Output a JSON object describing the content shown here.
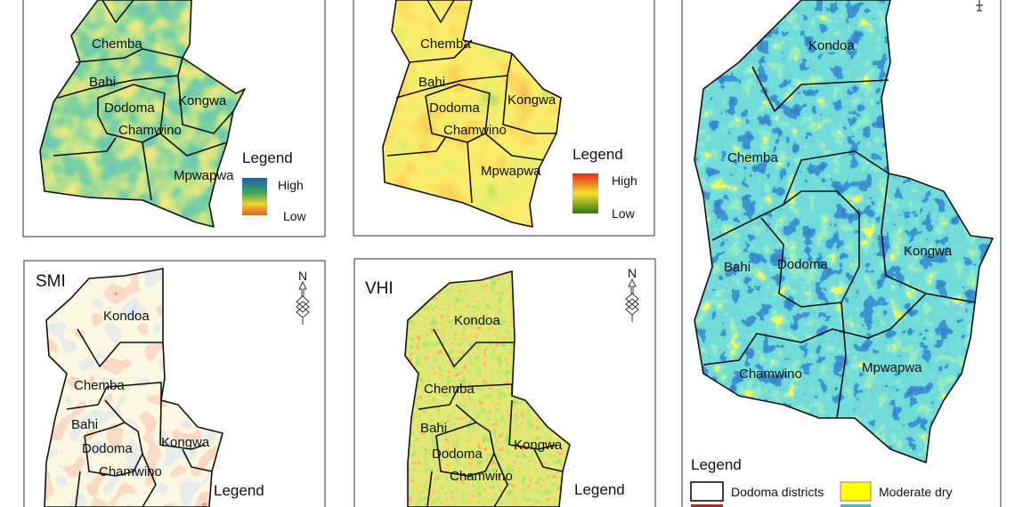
{
  "panels": {
    "a": {
      "title": "",
      "districts": [
        "Chemba",
        "Bahi",
        "Dodoma",
        "Chamwino",
        "Kongwa",
        "Mpwapwa"
      ],
      "legend": {
        "title": "Legend",
        "high": "High",
        "low": "Low",
        "colors": [
          "#1f5fa8",
          "#3aa85a",
          "#f0d22a",
          "#e0602a"
        ]
      }
    },
    "b": {
      "title": "",
      "districts": [
        "Chemba",
        "Bahi",
        "Dodoma",
        "Chamwino",
        "Kongwa",
        "Mpwapwa"
      ],
      "legend": {
        "title": "Legend",
        "high": "High",
        "low": "Low",
        "colors": [
          "#e8281e",
          "#f5e02a",
          "#2a7a18"
        ]
      }
    },
    "c": {
      "districts": [
        "Kondoa",
        "Chemba",
        "Bahi",
        "Dodoma",
        "Kongwa",
        "Chamwino",
        "Mpwapwa"
      ],
      "legend": {
        "title": "Legend",
        "items": [
          {
            "label": "Dodoma districts",
            "color": "#ffffff"
          },
          {
            "label": "Moderate dry",
            "color": "#ffff00"
          },
          {
            "label": "",
            "color": "#c8202a"
          },
          {
            "label": "",
            "color": "#3fc4a8"
          }
        ]
      }
    },
    "d": {
      "title": "SMI",
      "districts": [
        "Kondoa",
        "Chemba",
        "Bahi",
        "Dodoma",
        "Chamwino",
        "Kongwa"
      ],
      "legend": {
        "title": "Legend"
      },
      "north": "N"
    },
    "e": {
      "title": "VHI",
      "districts": [
        "Kondoa",
        "Chemba",
        "Bahi",
        "Dodoma",
        "Chamwino",
        "Kongwa"
      ],
      "legend": {
        "title": "Legend"
      },
      "north": "N"
    }
  },
  "icons": {
    "north_arrow": "north-arrow-icon"
  }
}
